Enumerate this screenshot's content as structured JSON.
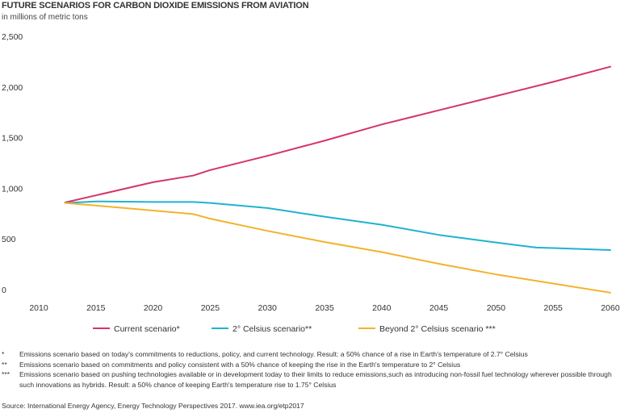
{
  "chart_data": {
    "type": "line",
    "title": "FUTURE SCENARIOS FOR CARBON DIOXIDE EMISSIONS FROM AVIATION",
    "subtitle": "in millions of metric tons",
    "xlabel": "",
    "ylabel": "",
    "xlim": [
      2010,
      2060
    ],
    "ylim": [
      0,
      2500
    ],
    "x_ticks": [
      "2010",
      "2015",
      "2020",
      "2025",
      "2030",
      "2035",
      "2040",
      "2045",
      "2050",
      "2055",
      "2060"
    ],
    "y_ticks": [
      "0",
      "500",
      "1,000",
      "1,500",
      "2,000",
      "2,500"
    ],
    "grid": false,
    "series": [
      {
        "name": "Current scenario*",
        "color": "#d6336c",
        "x": [
          2012.3,
          2015,
          2020,
          2023.5,
          2025,
          2030,
          2035,
          2040,
          2045,
          2050,
          2055,
          2060
        ],
        "values": [
          860,
          930,
          1060,
          1125,
          1180,
          1320,
          1470,
          1630,
          1770,
          1910,
          2050,
          2200
        ]
      },
      {
        "name": "2° Celsius scenario**",
        "color": "#1fb3cf",
        "x": [
          2012.3,
          2015,
          2020,
          2023.5,
          2025,
          2030,
          2035,
          2040,
          2045,
          2050,
          2053.5,
          2055,
          2060
        ],
        "values": [
          855,
          870,
          865,
          865,
          855,
          805,
          720,
          640,
          540,
          465,
          415,
          410,
          390
        ]
      },
      {
        "name": "Beyond 2° Celsius scenario ***",
        "color": "#f2b32b",
        "x": [
          2012.3,
          2015,
          2020,
          2023.5,
          2025,
          2030,
          2035,
          2040,
          2045,
          2050,
          2055,
          2060
        ],
        "values": [
          855,
          830,
          780,
          745,
          700,
          580,
          470,
          370,
          255,
          150,
          60,
          -30
        ]
      }
    ]
  },
  "notes": [
    {
      "mark": "*",
      "text": "Emissions scenario based on today's commitments to  reductions, policy, and current technology. Result: a 50% chance of a rise in Earth's temperature of 2.7° Celsius"
    },
    {
      "mark": "**",
      "text": "Emissions scenario based on commitments and policy consistent with a 50% chance of keeping the rise in the Earth's temperature to 2° Celsius"
    },
    {
      "mark": "***",
      "text": "Emissions scenario based on pushing technologies available or in development today to their limits to reduce emissions,such as introducing non-fossil fuel technology wherever possible through such innovations as hybrids. Result: a 50% chance of keeping Earth's temperature rise to 1.75° Celsius"
    }
  ],
  "source": "Source: International Energy Agency, Energy Technology Perspectives 2017. www.iea.org/etp2017"
}
